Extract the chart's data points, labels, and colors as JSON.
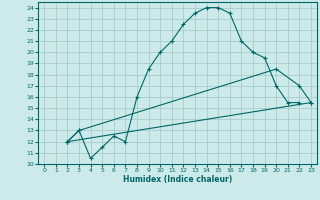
{
  "xlabel": "Humidex (Indice chaleur)",
  "background_color": "#cceaea",
  "grid_color": "#aacccc",
  "line_color": "#006666",
  "xlim": [
    -0.5,
    23.5
  ],
  "ylim": [
    10,
    24.5
  ],
  "xticks": [
    0,
    1,
    2,
    3,
    4,
    5,
    6,
    7,
    8,
    9,
    10,
    11,
    12,
    13,
    14,
    15,
    16,
    17,
    18,
    19,
    20,
    21,
    22,
    23
  ],
  "yticks": [
    10,
    11,
    12,
    13,
    14,
    15,
    16,
    17,
    18,
    19,
    20,
    21,
    22,
    23,
    24
  ],
  "line1_x": [
    2,
    3,
    4,
    5,
    6,
    7,
    8,
    9,
    10,
    11,
    12,
    13,
    14,
    15,
    16,
    17,
    18,
    19,
    20,
    21,
    22
  ],
  "line1_y": [
    12,
    13,
    10.5,
    11.5,
    12.5,
    12.0,
    16.0,
    18.5,
    20.0,
    21.0,
    22.5,
    23.5,
    24.0,
    24.0,
    23.5,
    21.0,
    20.0,
    19.5,
    17.0,
    15.5,
    15.5
  ],
  "line2_x": [
    2,
    3,
    20,
    22,
    23
  ],
  "line2_y": [
    12,
    13,
    18.5,
    17.0,
    15.5
  ],
  "line3_x": [
    2,
    23
  ],
  "line3_y": [
    12,
    15.5
  ]
}
